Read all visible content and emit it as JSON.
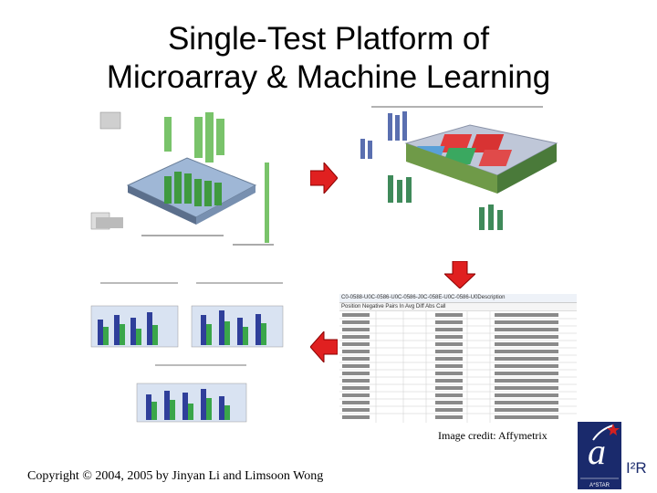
{
  "title": {
    "line1": "Single-Test Platform of",
    "line2": "Microarray & Machine Learning"
  },
  "panels": {
    "microarray": "microarray chip visualization",
    "heatmap": "gene expression distance diagram"
  },
  "table": {
    "header": "C0-0588-U0C-0586-U0C-0586-J0C-058E-U0C-0586-U0Description",
    "columns": "Position  Negative  Pairs In Avg Diff  Abs Call"
  },
  "credit": "Image credit: Affymetrix",
  "copyright": "Copyright © 2004, 2005 by Jinyan Li and Limsoon Wong",
  "logo": {
    "text": "I²R",
    "subtext": "A*STAR"
  },
  "colors": {
    "arrow": "#e02020",
    "logo": "#1a2a6c",
    "logo_accent": "#d22020"
  }
}
